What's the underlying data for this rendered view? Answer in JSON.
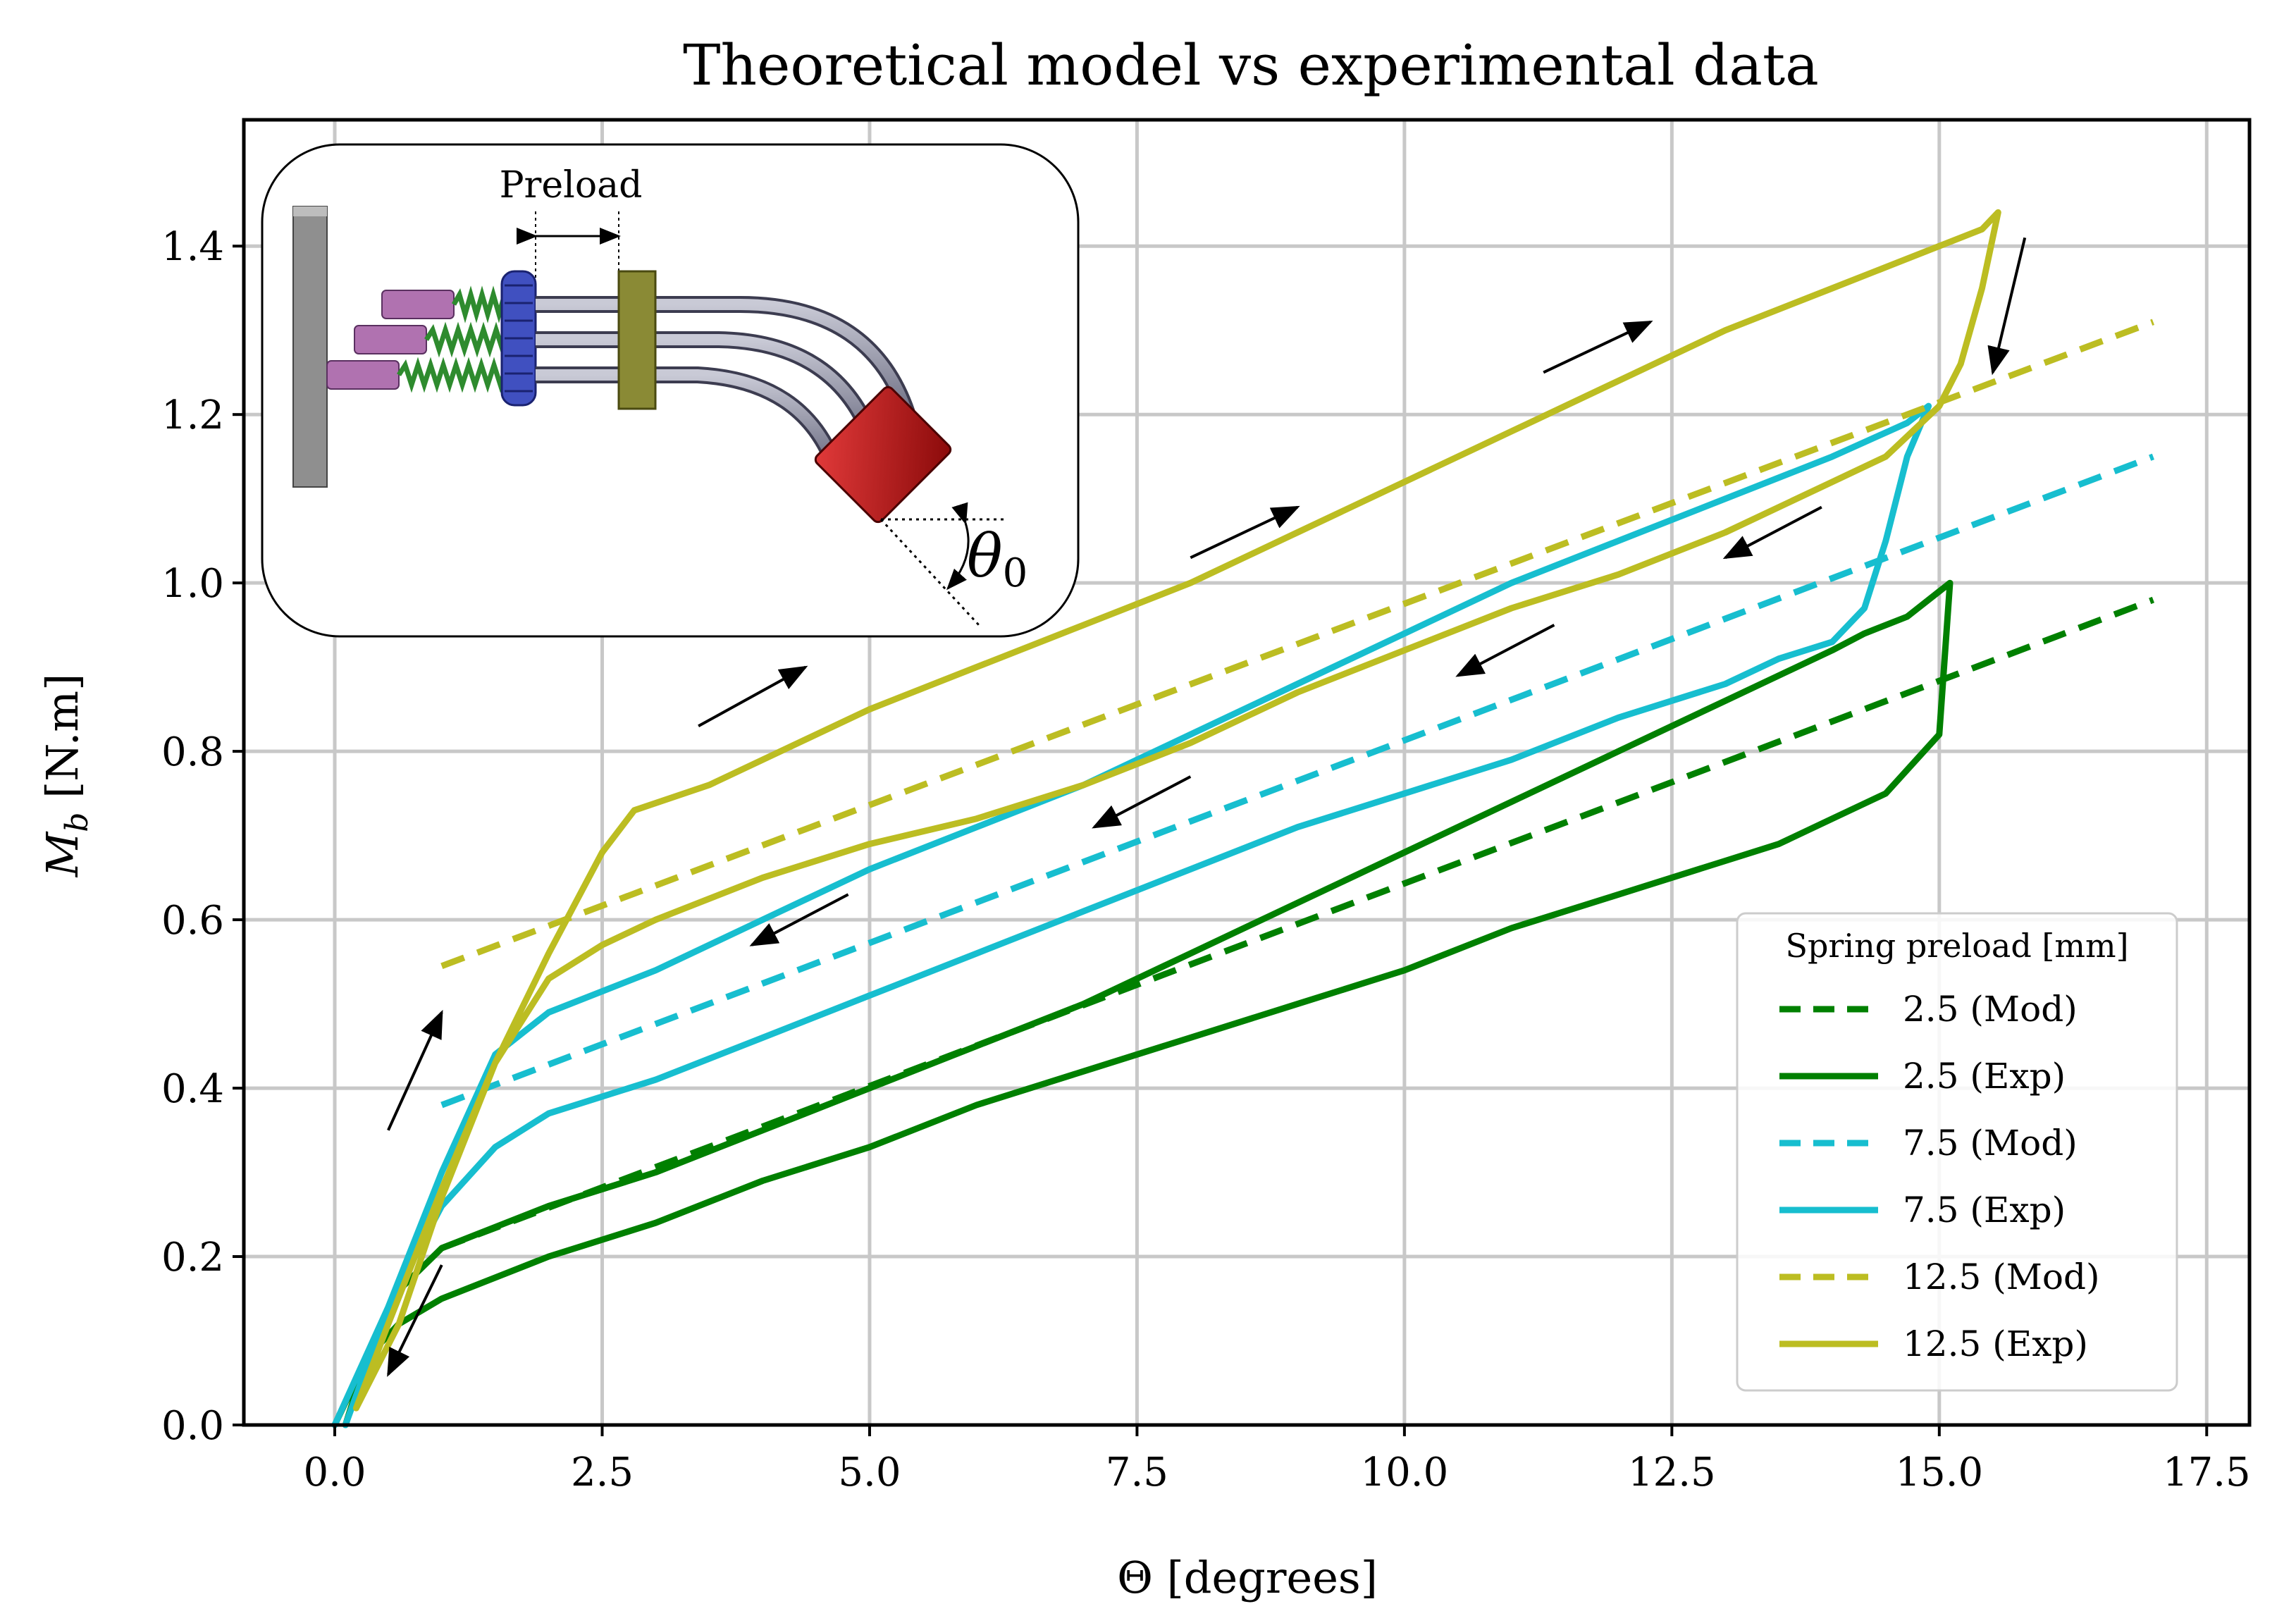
{
  "chart_data": {
    "type": "line",
    "title": "Theoretical model vs experimental data",
    "xlabel": "Θ [degrees]",
    "ylabel": "M_b [N.m]",
    "ylabel_main": "M",
    "ylabel_sub": "b",
    "ylabel_unit": " [N.m]",
    "xlim": [
      -0.85,
      17.9
    ],
    "ylim": [
      0,
      1.55
    ],
    "xticks": [
      0,
      2.5,
      5,
      7.5,
      10,
      12.5,
      15,
      17.5
    ],
    "xtick_labels": [
      "0.0",
      "2.5",
      "5.0",
      "7.5",
      "10.0",
      "12.5",
      "15.0",
      "17.5"
    ],
    "yticks": [
      0,
      0.2,
      0.4,
      0.6,
      0.8,
      1.0,
      1.2,
      1.4
    ],
    "ytick_labels": [
      "0.0",
      "0.2",
      "0.4",
      "0.6",
      "0.8",
      "1.0",
      "1.2",
      "1.4"
    ],
    "grid": true,
    "legend": {
      "title": "Spring preload [mm]",
      "position": "lower-right"
    },
    "series": [
      {
        "name": "2.5 (Mod)",
        "color": "#008000",
        "dashed": true,
        "x": [
          1.0,
          17.0
        ],
        "y": [
          0.21,
          0.98
        ]
      },
      {
        "name": "2.5 (Exp)",
        "color": "#008000",
        "dashed": false,
        "x": [
          0,
          0.3,
          0.6,
          1.0,
          2.0,
          3.0,
          4.0,
          5.0,
          6.0,
          7.0,
          8.0,
          9.0,
          10.0,
          11.0,
          12.0,
          13.0,
          13.5,
          14.0,
          14.5,
          15.0,
          15.1,
          14.7,
          14.3,
          14.0,
          13.0,
          12.0,
          11.0,
          10.0,
          9.0,
          8.0,
          7.0,
          6.0,
          5.0,
          4.0,
          3.0,
          2.0,
          1.0,
          0.6,
          0.3,
          0.1
        ],
        "y": [
          0,
          0.08,
          0.12,
          0.15,
          0.2,
          0.24,
          0.29,
          0.33,
          0.38,
          0.42,
          0.46,
          0.5,
          0.54,
          0.59,
          0.63,
          0.67,
          0.69,
          0.72,
          0.75,
          0.82,
          1.0,
          0.96,
          0.94,
          0.92,
          0.86,
          0.8,
          0.74,
          0.68,
          0.62,
          0.56,
          0.5,
          0.45,
          0.4,
          0.35,
          0.3,
          0.26,
          0.21,
          0.16,
          0.08,
          0
        ]
      },
      {
        "name": "7.5 (Mod)",
        "color": "#17becf",
        "dashed": true,
        "x": [
          1.0,
          17.0
        ],
        "y": [
          0.38,
          1.15
        ]
      },
      {
        "name": "7.5 (Exp)",
        "color": "#17becf",
        "dashed": false,
        "x": [
          0,
          0.5,
          1.0,
          1.5,
          2.0,
          3.0,
          4.0,
          5.0,
          6.0,
          7.0,
          8.0,
          9.0,
          10.0,
          11.0,
          12.0,
          13.0,
          13.5,
          14.0,
          14.3,
          14.5,
          14.7,
          14.9,
          14.7,
          14.0,
          13.0,
          12.0,
          11.0,
          10.0,
          9.0,
          8.0,
          7.0,
          6.0,
          5.0,
          4.0,
          3.0,
          2.0,
          1.5,
          1.0,
          0.5,
          0.1
        ],
        "y": [
          0,
          0.14,
          0.26,
          0.33,
          0.37,
          0.41,
          0.46,
          0.51,
          0.56,
          0.61,
          0.66,
          0.71,
          0.75,
          0.79,
          0.84,
          0.88,
          0.91,
          0.93,
          0.97,
          1.05,
          1.15,
          1.21,
          1.19,
          1.15,
          1.1,
          1.05,
          1.0,
          0.94,
          0.88,
          0.82,
          0.76,
          0.71,
          0.66,
          0.6,
          0.54,
          0.49,
          0.44,
          0.3,
          0.14,
          0
        ]
      },
      {
        "name": "12.5 (Mod)",
        "color": "#bcbd22",
        "dashed": true,
        "x": [
          1.0,
          17.0
        ],
        "y": [
          0.545,
          1.31
        ]
      },
      {
        "name": "12.5 (Exp)",
        "color": "#bcbd22",
        "dashed": false,
        "x": [
          0.2,
          0.5,
          1.0,
          1.5,
          2.0,
          2.5,
          2.8,
          3.5,
          4.0,
          5.0,
          6.0,
          7.0,
          8.0,
          9.0,
          10.0,
          11.0,
          12.0,
          13.0,
          14.0,
          15.0,
          15.4,
          15.55,
          15.4,
          15.2,
          15.0,
          14.5,
          14.0,
          13.0,
          12.0,
          11.0,
          10.0,
          9.0,
          8.0,
          7.0,
          6.0,
          5.0,
          4.0,
          3.0,
          2.5,
          2.0,
          1.5,
          1.0,
          0.6,
          0.2
        ],
        "y": [
          0.02,
          0.12,
          0.28,
          0.43,
          0.56,
          0.68,
          0.73,
          0.76,
          0.79,
          0.85,
          0.9,
          0.95,
          1.0,
          1.06,
          1.12,
          1.18,
          1.24,
          1.3,
          1.35,
          1.4,
          1.42,
          1.44,
          1.35,
          1.26,
          1.21,
          1.15,
          1.12,
          1.06,
          1.01,
          0.97,
          0.92,
          0.87,
          0.81,
          0.76,
          0.72,
          0.69,
          0.65,
          0.6,
          0.57,
          0.53,
          0.43,
          0.27,
          0.12,
          0.02
        ]
      }
    ],
    "annotations": {
      "inset_label": "Preload",
      "inset_angle_symbol": "θ",
      "inset_angle_subscript": "0"
    },
    "direction_arrows": [
      {
        "x1": 0.5,
        "y1": 0.35,
        "x2": 1.0,
        "y2": 0.49
      },
      {
        "x1": 3.4,
        "y1": 0.83,
        "x2": 4.4,
        "y2": 0.9
      },
      {
        "x1": 8.0,
        "y1": 1.03,
        "x2": 9.0,
        "y2": 1.09
      },
      {
        "x1": 11.3,
        "y1": 1.25,
        "x2": 12.3,
        "y2": 1.31
      },
      {
        "x1": 15.8,
        "y1": 1.41,
        "x2": 15.5,
        "y2": 1.25
      },
      {
        "x1": 13.9,
        "y1": 1.09,
        "x2": 13.0,
        "y2": 1.03
      },
      {
        "x1": 11.4,
        "y1": 0.95,
        "x2": 10.5,
        "y2": 0.89
      },
      {
        "x1": 8.0,
        "y1": 0.77,
        "x2": 7.1,
        "y2": 0.71
      },
      {
        "x1": 4.8,
        "y1": 0.63,
        "x2": 3.9,
        "y2": 0.57
      },
      {
        "x1": 1.0,
        "y1": 0.19,
        "x2": 0.5,
        "y2": 0.06
      }
    ]
  }
}
